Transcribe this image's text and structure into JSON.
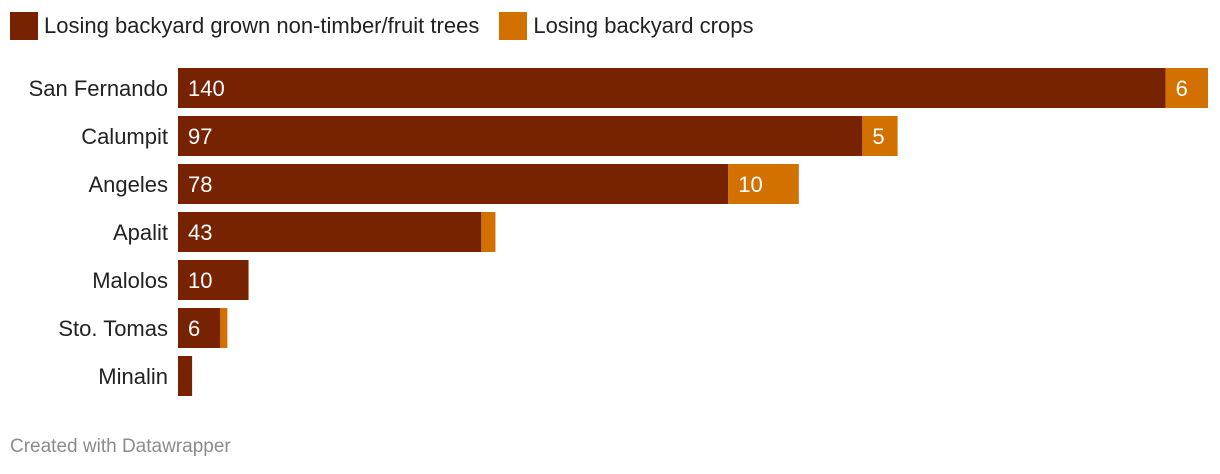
{
  "chart_data": {
    "type": "bar",
    "orientation": "horizontal",
    "stacked": true,
    "categories": [
      "San Fernando",
      "Calumpit",
      "Angeles",
      "Apalit",
      "Malolos",
      "Sto. Tomas",
      "Minalin"
    ],
    "series": [
      {
        "name": "Losing backyard grown non-timber/fruit trees",
        "color": "#772200",
        "values": [
          140,
          97,
          78,
          43,
          10,
          6,
          2
        ],
        "labels": [
          "140",
          "97",
          "78",
          "43",
          "10",
          "6",
          ""
        ]
      },
      {
        "name": "Losing backyard crops",
        "color": "#d27000",
        "values": [
          6,
          5,
          10,
          2,
          0,
          1,
          0
        ],
        "labels": [
          "6",
          "5",
          "10",
          "",
          "",
          "",
          ""
        ]
      }
    ],
    "xlim": [
      0,
      146
    ],
    "grid": false,
    "legend_position": "top-left"
  },
  "footer": {
    "credit": "Created with Datawrapper"
  }
}
